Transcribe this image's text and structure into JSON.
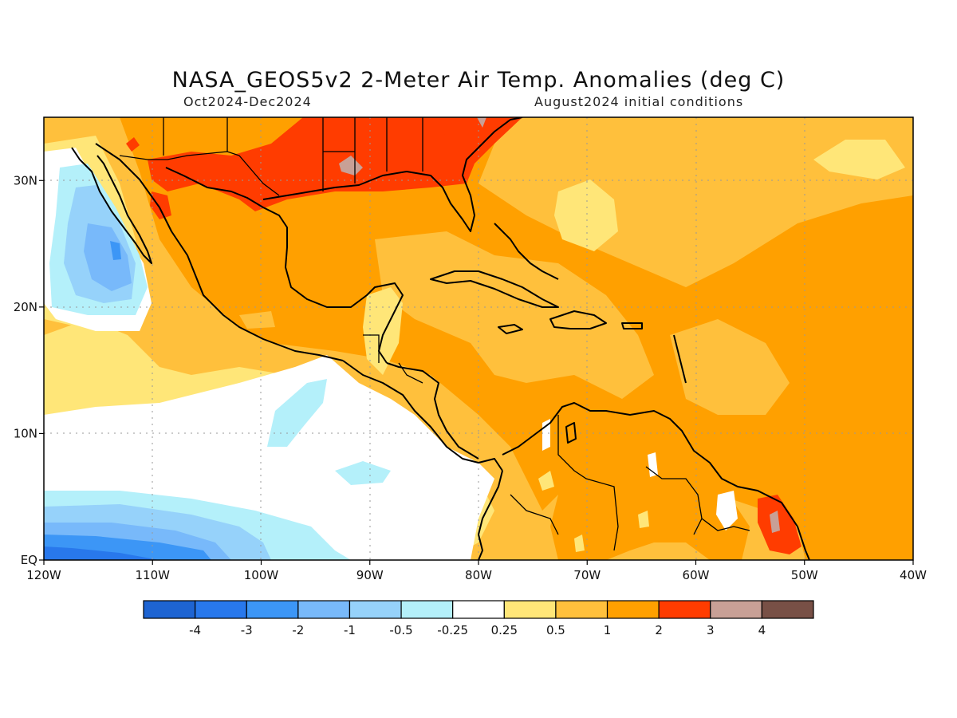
{
  "title": "NASA_GEOS5v2 2-Meter Air Temp. Anomalies (deg C)",
  "subtitle_left": "Oct2024-Dec2024",
  "subtitle_right": "August2024 initial conditions",
  "map": {
    "lon_ticks": [
      "120W",
      "110W",
      "100W",
      "90W",
      "80W",
      "70W",
      "60W",
      "50W",
      "40W"
    ],
    "lat_ticks": [
      "30N",
      "20N",
      "10N",
      "EQ"
    ],
    "lon_range": [
      -120,
      -40
    ],
    "lat_range": [
      0,
      35
    ],
    "gridlines": true
  },
  "colorbar": {
    "colors": [
      "#1e64d2",
      "#2878ec",
      "#3c96f6",
      "#78b9fa",
      "#96d2fa",
      "#b4f0fa",
      "#ffffff",
      "#ffe678",
      "#ffc03c",
      "#ffa000",
      "#ff3c00",
      "#c8a096",
      "#785046"
    ],
    "labels": [
      "-4",
      "-3",
      "-2",
      "-1",
      "-0.5",
      "-0.25",
      "0.25",
      "0.5",
      "1",
      "2",
      "3",
      "4"
    ]
  }
}
